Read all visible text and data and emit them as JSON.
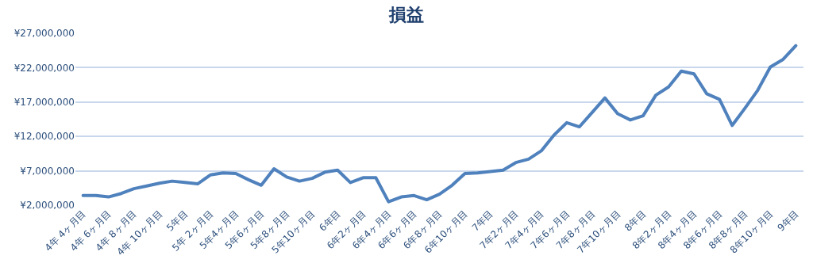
{
  "chart_data": {
    "type": "line",
    "title": "損益",
    "categories": [
      "4年 4ヶ月目",
      null,
      "4年 6ヶ月目",
      null,
      "4年 8ヶ月目",
      null,
      "4年 10ヶ月目",
      null,
      "5年目",
      null,
      "5年 2ヶ月目",
      null,
      "5年4ヶ月目",
      null,
      "5年6ヶ月目",
      null,
      "5年8ヶ月目",
      null,
      "5年10ヶ月目",
      null,
      "6年目",
      null,
      "6年2ヶ月目",
      null,
      "6年4ヶ月目",
      null,
      "6年6ヶ月目",
      null,
      "6年8ヶ月目",
      null,
      "6年10ヶ月目",
      null,
      "7年目",
      null,
      "7年2ヶ月目",
      null,
      "7年4ヶ月目",
      null,
      "7年6ヶ月目",
      null,
      "7年8ヶ月目",
      null,
      "7年10ヶ月目",
      null,
      "8年目",
      null,
      "8年2ヶ月目",
      null,
      "8年4ヶ月目",
      null,
      "8年6ヶ月目",
      null,
      "8年8ヶ月目",
      null,
      "8年10ヶ月目",
      null,
      "9年目"
    ],
    "series": [
      {
        "color": "#4f81bd",
        "values": [
          3400000,
          3400000,
          3200000,
          3700000,
          4400000,
          4800000,
          5200000,
          5500000,
          5300000,
          5100000,
          6400000,
          6700000,
          6600000,
          5700000,
          4900000,
          7300000,
          6100000,
          5500000,
          5900000,
          6800000,
          7100000,
          5300000,
          6000000,
          6000000,
          2500000,
          3200000,
          3400000,
          2800000,
          3600000,
          4900000,
          6600000,
          6700000,
          6900000,
          7100000,
          8200000,
          8700000,
          9900000,
          12200000,
          14000000,
          13400000,
          15500000,
          17600000,
          15300000,
          14400000,
          15000000,
          18000000,
          19200000,
          21500000,
          21100000,
          18200000,
          17400000,
          13600000,
          16100000,
          18700000,
          22100000,
          23200000,
          25200000
        ]
      }
    ],
    "ylim": [
      2000000,
      27000000
    ],
    "yticks": [
      {
        "value": 2000000,
        "label": "¥2,000,000"
      },
      {
        "value": 7000000,
        "label": "¥7,000,000"
      },
      {
        "value": 12000000,
        "label": "¥12,000,000"
      },
      {
        "value": 17000000,
        "label": "¥17,000,000"
      },
      {
        "value": 22000000,
        "label": "¥22,000,000"
      },
      {
        "value": 27000000,
        "label": "¥27,000,000"
      }
    ],
    "grid": "y",
    "marker": "none",
    "line_style": "solid"
  }
}
